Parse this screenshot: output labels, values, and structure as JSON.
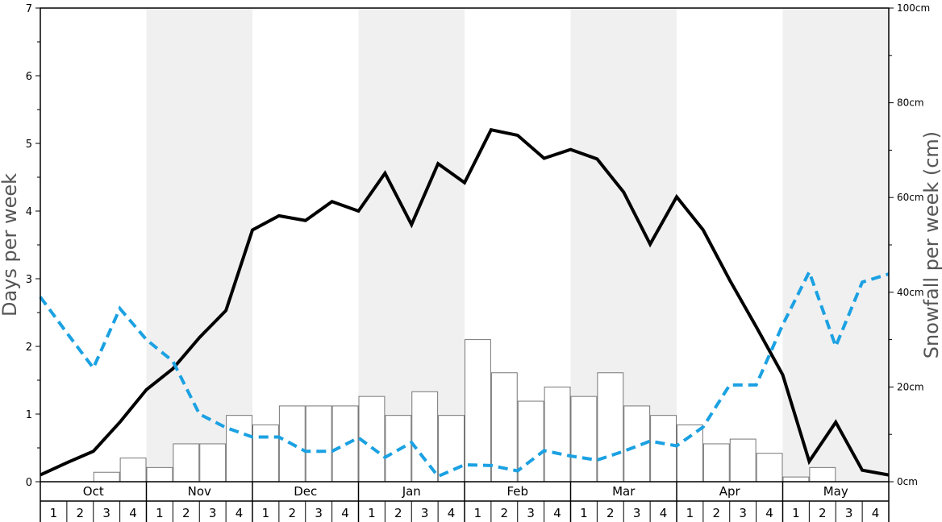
{
  "chart_data": {
    "type": "bar",
    "ylabel_left": "Days per week",
    "ylabel_right": "Snowfall per week (cm)",
    "ylim_left": [
      0,
      7
    ],
    "ylim_right": [
      0,
      100
    ],
    "left_ticks": [
      "0",
      "1",
      "2",
      "3",
      "4",
      "5",
      "6",
      "7"
    ],
    "right_ticks": [
      "0cm",
      "20cm",
      "40cm",
      "60cm",
      "80cm",
      "100cm"
    ],
    "months": [
      "Oct",
      "Nov",
      "Dec",
      "Jan",
      "Feb",
      "Mar",
      "Apr",
      "May"
    ],
    "weeks": [
      "1",
      "2",
      "3",
      "4"
    ],
    "shaded_months": [
      "Nov",
      "Jan",
      "Mar",
      "May"
    ],
    "colors": {
      "shade": "#f0f0f0",
      "bars": "#ffffff",
      "bar_stroke": "#777777",
      "line_solid": "#000000",
      "line_dashed": "#1ba1e2"
    },
    "series": [
      {
        "kind": "bar",
        "axis": "right",
        "values": [
          0,
          0,
          2,
          5,
          3,
          8,
          8,
          14,
          12,
          16,
          16,
          16,
          18,
          14,
          19,
          14,
          30,
          23,
          17,
          20,
          18,
          23,
          16,
          14,
          12,
          8,
          9,
          6,
          1,
          3,
          0,
          0
        ]
      },
      {
        "kind": "line",
        "style": "solid",
        "axis": "left",
        "values": [
          0.1,
          0.28,
          0.45,
          0.88,
          1.36,
          1.67,
          2.13,
          2.53,
          3.72,
          3.93,
          3.86,
          4.14,
          4.0,
          4.56,
          3.8,
          4.7,
          4.42,
          5.2,
          5.12,
          4.78,
          4.91,
          4.77,
          4.28,
          3.51,
          4.21,
          3.72,
          2.98,
          2.29,
          1.58,
          0.3,
          0.88,
          0.17,
          0.1
        ]
      },
      {
        "kind": "line",
        "style": "dashed",
        "axis": "left",
        "values": [
          2.73,
          2.2,
          1.68,
          2.56,
          2.1,
          1.78,
          1.0,
          0.8,
          0.66,
          0.66,
          0.45,
          0.45,
          0.65,
          0.36,
          0.58,
          0.08,
          0.25,
          0.24,
          0.16,
          0.46,
          0.38,
          0.32,
          0.45,
          0.6,
          0.53,
          0.81,
          1.43,
          1.43,
          2.32,
          3.1,
          2.0,
          2.95,
          3.07
        ]
      }
    ]
  }
}
